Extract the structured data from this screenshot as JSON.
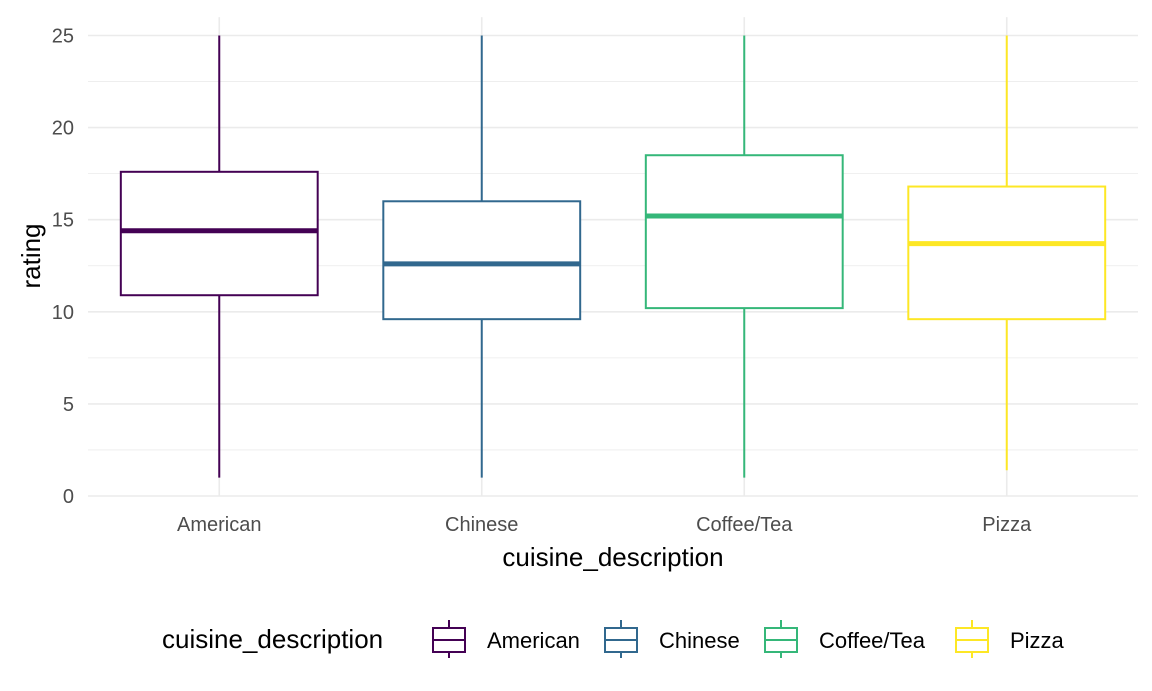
{
  "chart_data": {
    "type": "boxplot",
    "xlabel": "cuisine_description",
    "ylabel": "rating",
    "ylim": [
      0,
      26
    ],
    "y_ticks": [
      0,
      5,
      10,
      15,
      20,
      25
    ],
    "grid": true,
    "legend": {
      "title": "cuisine_description",
      "placement": "bottom"
    },
    "categories": [
      "American",
      "Chinese",
      "Coffee/Tea",
      "Pizza"
    ],
    "colors": [
      "#440154",
      "#31688e",
      "#35b779",
      "#fde725"
    ],
    "boxes": [
      {
        "category": "American",
        "min": 1.0,
        "q1": 10.9,
        "median": 14.4,
        "q3": 17.6,
        "max": 25.0
      },
      {
        "category": "Chinese",
        "min": 1.0,
        "q1": 9.6,
        "median": 12.6,
        "q3": 16.0,
        "max": 25.0
      },
      {
        "category": "Coffee/Tea",
        "min": 1.0,
        "q1": 10.2,
        "median": 15.2,
        "q3": 18.5,
        "max": 25.0
      },
      {
        "category": "Pizza",
        "min": 1.4,
        "q1": 9.6,
        "median": 13.7,
        "q3": 16.8,
        "max": 25.0
      }
    ]
  }
}
